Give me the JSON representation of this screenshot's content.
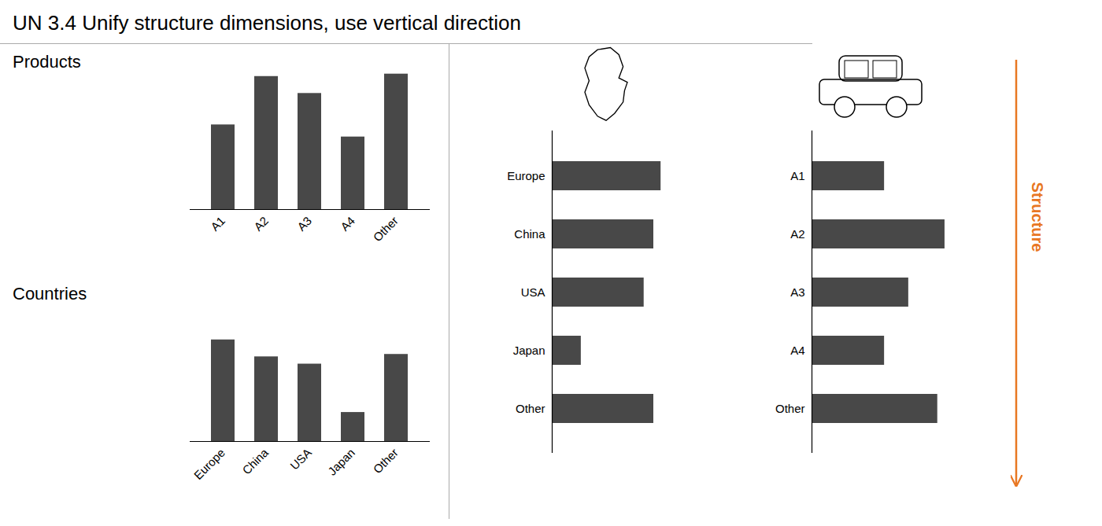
{
  "chart_data": [
    {
      "type": "bar",
      "title": "UN 3.4   Unify structure dimensions, use vertical direction",
      "subtitle": "Products",
      "categories": [
        "A1",
        "A2",
        "A3",
        "A4",
        "Other"
      ],
      "values": [
        3.5,
        5.5,
        4.8,
        3.0,
        5.6
      ],
      "color": "#484848",
      "ylim": [
        0,
        6.5
      ],
      "tick_labels": "x"
    },
    {
      "type": "bar",
      "subtitle": "Countries",
      "categories": [
        "Europe",
        "China",
        "USA",
        "Japan",
        "Other"
      ],
      "values": [
        4.2,
        3.5,
        3.2,
        1.2,
        3.6
      ],
      "color": "#484848",
      "ylim": [
        0,
        6.5
      ],
      "tick_labels": "x"
    },
    {
      "type": "bar",
      "orientation": "horizontal",
      "categories": [
        "Europe",
        "China",
        "USA",
        "Japan",
        "Other"
      ],
      "values": [
        4.5,
        4.2,
        3.8,
        1.2,
        4.2
      ],
      "color": "#484848",
      "xlim": [
        0,
        7.0
      ],
      "tick_labels": "y"
    },
    {
      "type": "bar",
      "orientation": "horizontal",
      "categories": [
        "A1",
        "A2",
        "A3",
        "A4",
        "Other"
      ],
      "values": [
        3.0,
        5.5,
        4.0,
        3.0,
        5.2
      ],
      "color": "#484848",
      "xlim": [
        0,
        7.0
      ],
      "tick_labels": "y",
      "annotations": [
        {
          "text": "Structure",
          "color": "#E87722"
        }
      ]
    }
  ]
}
